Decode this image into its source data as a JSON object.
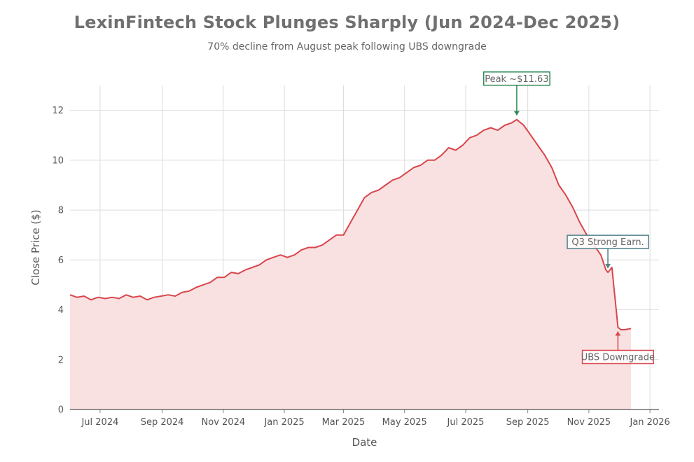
{
  "title": "LexinFintech Stock Plunges Sharply (Jun 2024-Dec 2025)",
  "subtitle": "70% decline from August peak following UBS downgrade",
  "chart_data": {
    "type": "area",
    "title": "LexinFintech Stock Plunges Sharply (Jun 2024-Dec 2025)",
    "subtitle": "70% decline from August peak following UBS downgrade",
    "xlabel": "Date",
    "ylabel": "Close Price ($)",
    "xlim": [
      "2024-06-01",
      "2026-01-10"
    ],
    "ylim": [
      0,
      13
    ],
    "yticks": [
      0,
      2,
      4,
      6,
      8,
      10,
      12
    ],
    "xticks": [
      {
        "date": "2024-07-01",
        "label": "Jul 2024"
      },
      {
        "date": "2024-09-01",
        "label": "Sep 2024"
      },
      {
        "date": "2024-11-01",
        "label": "Nov 2024"
      },
      {
        "date": "2025-01-01",
        "label": "Jan 2025"
      },
      {
        "date": "2025-03-01",
        "label": "Mar 2025"
      },
      {
        "date": "2025-05-01",
        "label": "May 2025"
      },
      {
        "date": "2025-07-01",
        "label": "Jul 2025"
      },
      {
        "date": "2025-09-01",
        "label": "Sep 2025"
      },
      {
        "date": "2025-11-01",
        "label": "Nov 2025"
      },
      {
        "date": "2026-01-01",
        "label": "Jan 2026"
      }
    ],
    "grid": true,
    "line_color": "#d9464d",
    "fill_color": "#f9e1e1",
    "series": [
      {
        "name": "Close Price",
        "points": [
          [
            "2024-06-01",
            4.6
          ],
          [
            "2024-06-08",
            4.5
          ],
          [
            "2024-06-15",
            4.55
          ],
          [
            "2024-06-22",
            4.4
          ],
          [
            "2024-06-29",
            4.5
          ],
          [
            "2024-07-06",
            4.45
          ],
          [
            "2024-07-13",
            4.5
          ],
          [
            "2024-07-20",
            4.45
          ],
          [
            "2024-07-27",
            4.6
          ],
          [
            "2024-08-03",
            4.5
          ],
          [
            "2024-08-10",
            4.55
          ],
          [
            "2024-08-17",
            4.4
          ],
          [
            "2024-08-24",
            4.5
          ],
          [
            "2024-08-31",
            4.55
          ],
          [
            "2024-09-07",
            4.6
          ],
          [
            "2024-09-14",
            4.55
          ],
          [
            "2024-09-21",
            4.7
          ],
          [
            "2024-09-28",
            4.75
          ],
          [
            "2024-10-05",
            4.9
          ],
          [
            "2024-10-12",
            5.0
          ],
          [
            "2024-10-19",
            5.1
          ],
          [
            "2024-10-26",
            5.3
          ],
          [
            "2024-11-02",
            5.3
          ],
          [
            "2024-11-09",
            5.5
          ],
          [
            "2024-11-16",
            5.45
          ],
          [
            "2024-11-23",
            5.6
          ],
          [
            "2024-11-30",
            5.7
          ],
          [
            "2024-12-07",
            5.8
          ],
          [
            "2024-12-14",
            6.0
          ],
          [
            "2024-12-21",
            6.1
          ],
          [
            "2024-12-28",
            6.2
          ],
          [
            "2025-01-04",
            6.1
          ],
          [
            "2025-01-11",
            6.2
          ],
          [
            "2025-01-18",
            6.4
          ],
          [
            "2025-01-25",
            6.5
          ],
          [
            "2025-02-01",
            6.5
          ],
          [
            "2025-02-08",
            6.6
          ],
          [
            "2025-02-15",
            6.8
          ],
          [
            "2025-02-22",
            7.0
          ],
          [
            "2025-03-01",
            7.0
          ],
          [
            "2025-03-08",
            7.5
          ],
          [
            "2025-03-15",
            8.0
          ],
          [
            "2025-03-22",
            8.5
          ],
          [
            "2025-03-29",
            8.7
          ],
          [
            "2025-04-05",
            8.8
          ],
          [
            "2025-04-12",
            9.0
          ],
          [
            "2025-04-19",
            9.2
          ],
          [
            "2025-04-26",
            9.3
          ],
          [
            "2025-05-03",
            9.5
          ],
          [
            "2025-05-10",
            9.7
          ],
          [
            "2025-05-17",
            9.8
          ],
          [
            "2025-05-24",
            10.0
          ],
          [
            "2025-05-31",
            10.0
          ],
          [
            "2025-06-07",
            10.2
          ],
          [
            "2025-06-14",
            10.5
          ],
          [
            "2025-06-21",
            10.4
          ],
          [
            "2025-06-28",
            10.6
          ],
          [
            "2025-07-05",
            10.9
          ],
          [
            "2025-07-12",
            11.0
          ],
          [
            "2025-07-19",
            11.2
          ],
          [
            "2025-07-26",
            11.3
          ],
          [
            "2025-08-02",
            11.2
          ],
          [
            "2025-08-09",
            11.4
          ],
          [
            "2025-08-16",
            11.5
          ],
          [
            "2025-08-21",
            11.63
          ],
          [
            "2025-08-28",
            11.4
          ],
          [
            "2025-09-04",
            11.0
          ],
          [
            "2025-09-11",
            10.6
          ],
          [
            "2025-09-18",
            10.2
          ],
          [
            "2025-09-25",
            9.7
          ],
          [
            "2025-10-02",
            9.0
          ],
          [
            "2025-10-09",
            8.6
          ],
          [
            "2025-10-16",
            8.1
          ],
          [
            "2025-10-23",
            7.5
          ],
          [
            "2025-10-30",
            7.0
          ],
          [
            "2025-11-06",
            6.6
          ],
          [
            "2025-11-13",
            6.2
          ],
          [
            "2025-11-18",
            5.6
          ],
          [
            "2025-11-20",
            5.5
          ],
          [
            "2025-11-24",
            5.7
          ],
          [
            "2025-11-27",
            4.5
          ],
          [
            "2025-11-30",
            3.3
          ],
          [
            "2025-12-03",
            3.2
          ],
          [
            "2025-12-07",
            3.2
          ],
          [
            "2025-12-13",
            3.25
          ]
        ]
      }
    ],
    "annotations": [
      {
        "label": "Peak ~$11.63",
        "date": "2025-08-21",
        "value": 11.63,
        "color": "#2e8b57",
        "placement": "above"
      },
      {
        "label": "Q3 Strong Earn.",
        "date": "2025-11-20",
        "value": 5.5,
        "color": "#4e7f87",
        "placement": "above"
      },
      {
        "label": "UBS Downgrade",
        "date": "2025-11-30",
        "value": 3.3,
        "color": "#d9464d",
        "placement": "below"
      }
    ]
  }
}
